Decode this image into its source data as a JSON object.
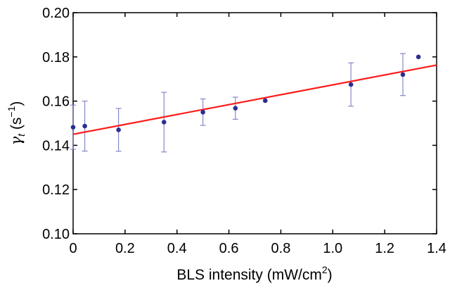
{
  "chart_data": {
    "type": "scatter",
    "title": "",
    "xlabel": {
      "base": "BLS intensity (mW/cm",
      "sup": "2",
      "tail": ")"
    },
    "ylabel": {
      "gamma": "γ",
      "sub": "t",
      "open": " (s",
      "sup": "−1",
      "close": ")"
    },
    "xlim": [
      0,
      1.4
    ],
    "ylim": [
      0.1,
      0.2
    ],
    "x_ticks": [
      "0",
      "0.2",
      "0.4",
      "0.6",
      "0.8",
      "1.0",
      "1.2",
      "1.4"
    ],
    "y_ticks": [
      "0.10",
      "0.12",
      "0.14",
      "0.16",
      "0.18",
      "0.20"
    ],
    "grid": false,
    "series": [
      {
        "type": "scatter",
        "color": "#2a2f8f",
        "points": [
          {
            "x": 0.0,
            "y": 0.1482,
            "err": 0.01
          },
          {
            "x": 0.045,
            "y": 0.1487,
            "err": 0.0113
          },
          {
            "x": 0.175,
            "y": 0.147,
            "err": 0.0097
          },
          {
            "x": 0.35,
            "y": 0.1505,
            "err": 0.0135
          },
          {
            "x": 0.5,
            "y": 0.155,
            "err": 0.006
          },
          {
            "x": 0.625,
            "y": 0.1568,
            "err": 0.005
          },
          {
            "x": 0.74,
            "y": 0.1602,
            "err": 0.0
          },
          {
            "x": 1.07,
            "y": 0.1675,
            "err": 0.0098
          },
          {
            "x": 1.27,
            "y": 0.172,
            "err": 0.0095
          },
          {
            "x": 1.33,
            "y": 0.18,
            "err": 0.0
          }
        ]
      },
      {
        "type": "line",
        "color": "#ff1a1a",
        "x": [
          0,
          1.4
        ],
        "y": [
          0.145,
          0.1763
        ]
      }
    ]
  }
}
